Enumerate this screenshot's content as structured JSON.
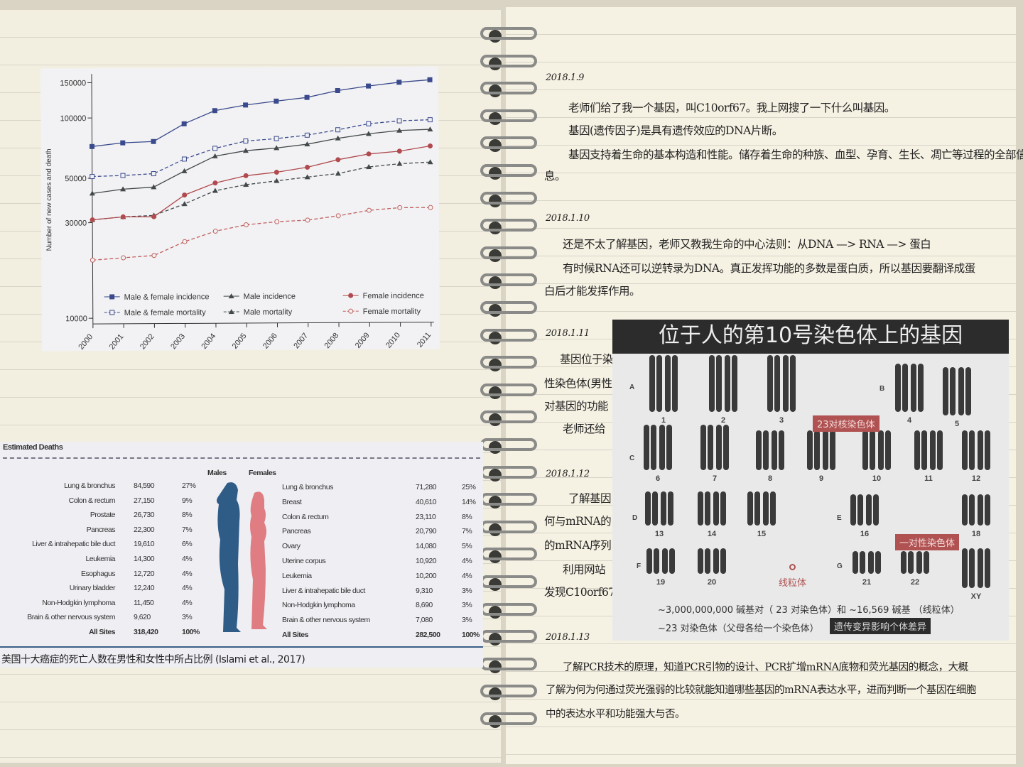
{
  "chart_data": {
    "type": "line",
    "ylabel": "Number of new cases and death",
    "yscale": "log",
    "ylim": [
      10000,
      150000
    ],
    "yticks": [
      "150000",
      "100000",
      "50000",
      "30000",
      "10000"
    ],
    "x": [
      "2000",
      "2001",
      "2002",
      "2003",
      "2004",
      "2005",
      "2006",
      "2007",
      "2008",
      "2009",
      "2010",
      "2011"
    ],
    "legend_position": "bottom",
    "series": [
      {
        "name": "Male & female incidence",
        "color": "#3a4a8c",
        "dash": false,
        "marker": "square",
        "values": [
          72000,
          75000,
          76000,
          93000,
          108000,
          115000,
          120000,
          125000,
          135000,
          142000,
          148000,
          152000
        ]
      },
      {
        "name": "Male & female mortality",
        "color": "#3a4a8c",
        "dash": true,
        "marker": "square-open",
        "values": [
          51000,
          51500,
          52500,
          62000,
          70000,
          76000,
          78000,
          81000,
          86000,
          92000,
          95000,
          96000
        ]
      },
      {
        "name": "Male incidence",
        "color": "#444a4c",
        "dash": false,
        "marker": "triangle",
        "values": [
          42000,
          44000,
          45000,
          54000,
          64000,
          68000,
          70000,
          73000,
          78000,
          82000,
          85000,
          86000
        ]
      },
      {
        "name": "Male mortality",
        "color": "#444a4c",
        "dash": true,
        "marker": "triangle",
        "values": [
          31000,
          32000,
          32500,
          37000,
          43000,
          46000,
          48000,
          50000,
          52000,
          56000,
          58000,
          59000
        ]
      },
      {
        "name": "Female incidence",
        "color": "#b04a4e",
        "dash": false,
        "marker": "circle",
        "values": [
          31000,
          32000,
          32000,
          41000,
          47000,
          51000,
          53000,
          56000,
          61000,
          65000,
          67000,
          71000
        ]
      },
      {
        "name": "Female mortality",
        "color": "#c0605e",
        "dash": true,
        "marker": "circle-open",
        "values": [
          19500,
          20000,
          20500,
          24000,
          27000,
          29000,
          30000,
          30500,
          32000,
          34000,
          35000,
          35000
        ]
      }
    ]
  },
  "deaths": {
    "heading": "Estimated Deaths",
    "males_label": "Males",
    "females_label": "Females",
    "male_color": "#2e5c86",
    "female_color": "#e07d83",
    "males": [
      [
        "Lung & bronchus",
        "84,590",
        "27%"
      ],
      [
        "Colon & rectum",
        "27,150",
        "9%"
      ],
      [
        "Prostate",
        "26,730",
        "8%"
      ],
      [
        "Pancreas",
        "22,300",
        "7%"
      ],
      [
        "Liver & intrahepatic bile duct",
        "19,610",
        "6%"
      ],
      [
        "Leukemia",
        "14,300",
        "4%"
      ],
      [
        "Esophagus",
        "12,720",
        "4%"
      ],
      [
        "Urinary bladder",
        "12,240",
        "4%"
      ],
      [
        "Non-Hodgkin lymphoma",
        "11,450",
        "4%"
      ],
      [
        "Brain & other nervous system",
        "9,620",
        "3%"
      ],
      [
        "All Sites",
        "318,420",
        "100%"
      ]
    ],
    "females": [
      [
        "Lung & bronchus",
        "71,280",
        "25%"
      ],
      [
        "Breast",
        "40,610",
        "14%"
      ],
      [
        "Colon & rectum",
        "23,110",
        "8%"
      ],
      [
        "Pancreas",
        "20,790",
        "7%"
      ],
      [
        "Ovary",
        "14,080",
        "5%"
      ],
      [
        "Uterine corpus",
        "10,920",
        "4%"
      ],
      [
        "Leukemia",
        "10,200",
        "4%"
      ],
      [
        "Liver & intrahepatic bile duct",
        "9,310",
        "3%"
      ],
      [
        "Non-Hodgkin lymphoma",
        "8,690",
        "3%"
      ],
      [
        "Brain & other nervous system",
        "7,080",
        "3%"
      ],
      [
        "All Sites",
        "282,500",
        "100%"
      ]
    ],
    "caption": "美国十大癌症的死亡人数在男性和女性中所占比例 (Islami et al., 2017)"
  },
  "notes": [
    {
      "date": "2018.1.9",
      "lines": [
        "老师们给了我一个基因，叫C10orf67。我上网搜了一下什么叫基因。",
        "基因(遗传因子)是具有遗传效应的DNA片断。",
        "基因支持着生命的基本构造和性能。储存着生命的种族、血型、孕育、生长、凋亡等过程的全部信",
        "息。"
      ]
    },
    {
      "date": "2018.1.10",
      "lines": [
        "还是不太了解基因，老师又教我生命的中心法则：从DNA —> RNA —> 蛋白",
        "有时候RNA还可以逆转录为DNA。真正发挥功能的多数是蛋白质，所以基因要翻译成蛋",
        "白后才能发挥作用。"
      ]
    },
    {
      "date": "2018.1.11",
      "lines": [
        "基因位于染",
        "性染色体(男性",
        "对基因的功能",
        "老师还给"
      ]
    },
    {
      "date": "2018.1.12",
      "lines": [
        "了解基因",
        "何与mRNA的",
        "的mRNA序列",
        "利用网站",
        "发现C10orf67"
      ]
    },
    {
      "date": "2018.1.13",
      "lines": [
        "了解PCR技术的原理，知道PCR引物的设计、PCR扩增mRNA底物和荧光基因的概念，大概",
        "了解为何为何通过荧光强弱的比较就能知道哪些基因的mRNA表达水平，进而判断一个基因在细胞",
        "中的表达水平和功能强大与否。"
      ]
    }
  ],
  "chromosomes": {
    "title": "位于人的第10号染色体上的基因",
    "groups": [
      "A",
      "B",
      "C",
      "D",
      "E",
      "F",
      "G"
    ],
    "numbers": [
      "1",
      "2",
      "3",
      "4",
      "5",
      "6",
      "7",
      "8",
      "9",
      "10",
      "11",
      "12",
      "13",
      "14",
      "15",
      "16",
      "18",
      "19",
      "20",
      "21",
      "22",
      "XY"
    ],
    "tag_autosomes": "23对核染色体",
    "tag_sex": "一对性染色体",
    "mito_label": "线粒体",
    "line1": "~3,000,000,000 碱基对（ 23 对染色体）和 ~16,569 碱基 （线粒体）",
    "line2": "~23 对染色体（父母各给一个染色体）",
    "tag_variation": "遗传变异影响个体差异"
  }
}
